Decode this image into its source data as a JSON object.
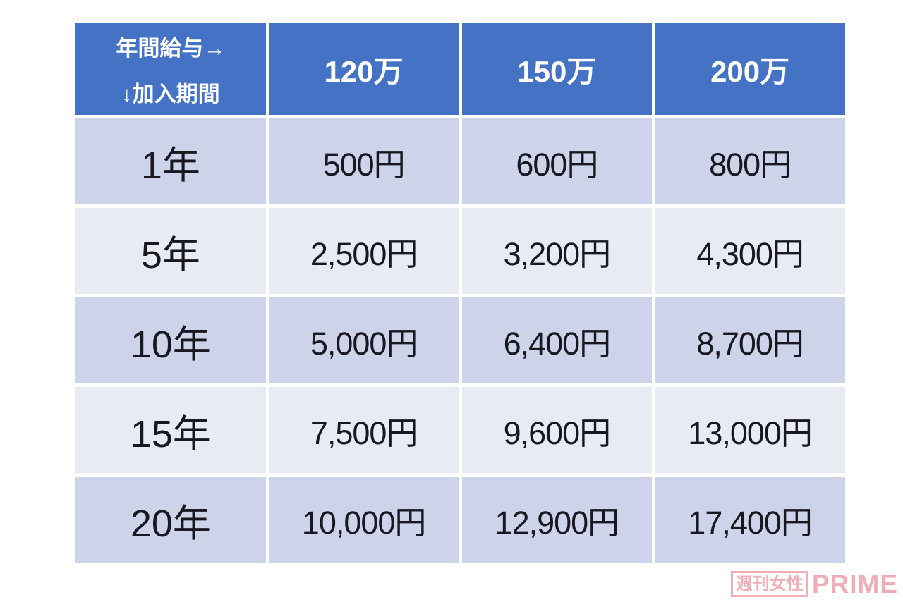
{
  "table": {
    "corner": {
      "line1": "年間給与→",
      "line2": "↓加入期間"
    },
    "columns": [
      "120万",
      "150万",
      "200万"
    ],
    "rows": [
      {
        "label": "1年",
        "values": [
          "500円",
          "600円",
          "800円"
        ]
      },
      {
        "label": "5年",
        "values": [
          "2,500円",
          "3,200円",
          "4,300円"
        ]
      },
      {
        "label": "10年",
        "values": [
          "5,000円",
          "6,400円",
          "8,700円"
        ]
      },
      {
        "label": "15年",
        "values": [
          "7,500円",
          "9,600円",
          "13,000円"
        ]
      },
      {
        "label": "20年",
        "values": [
          "10,000円",
          "12,900円",
          "17,400円"
        ]
      }
    ],
    "colors": {
      "header_bg": "#4472C4",
      "header_text": "#FFFFFF",
      "band_dark": "#CDD3E8",
      "band_light": "#E9EBF4",
      "grid_line": "#FFFFFF",
      "cell_text": "#181820"
    }
  },
  "watermark": {
    "boxed_text": "週刊女性",
    "plain_text": "PRIME",
    "color": "#EE9FAA"
  },
  "chart_data": {
    "type": "table",
    "title": "",
    "corner_header": "年間給与→ ↓加入期間",
    "columns": [
      "120万",
      "150万",
      "200万"
    ],
    "row_labels": [
      "1年",
      "5年",
      "10年",
      "15年",
      "20年"
    ],
    "rows": [
      [
        "500円",
        "600円",
        "800円"
      ],
      [
        "2,500円",
        "3,200円",
        "4,300円"
      ],
      [
        "5,000円",
        "6,400円",
        "8,700円"
      ],
      [
        "7,500円",
        "9,600円",
        "13,000円"
      ],
      [
        "10,000円",
        "12,900円",
        "17,400円"
      ]
    ],
    "layout_hints": {
      "header_fill": "#4472C4",
      "banded_rows": [
        "dark",
        "light",
        "dark",
        "light",
        "dark"
      ],
      "grid": "white 4px separators"
    }
  }
}
